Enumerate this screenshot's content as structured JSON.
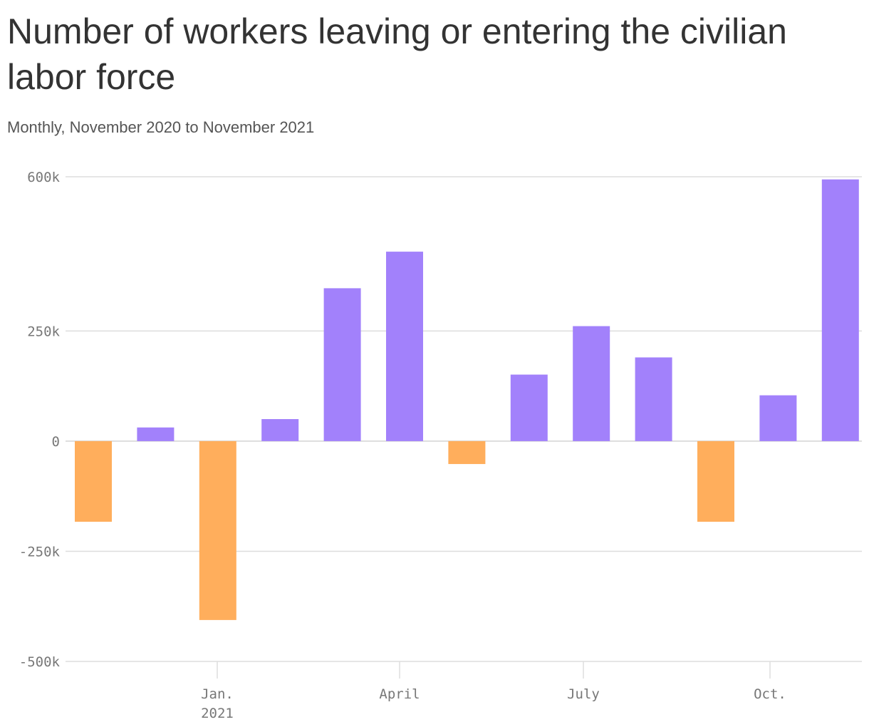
{
  "chart_data": {
    "type": "bar",
    "title": "Number of workers leaving or entering the civilian labor force",
    "subtitle": "Monthly, November 2020 to November 2021",
    "categories": [
      "Nov. 2020",
      "Dec. 2020",
      "Jan. 2021",
      "Feb. 2021",
      "Mar. 2021",
      "Apr. 2021",
      "May 2021",
      "Jun. 2021",
      "Jul. 2021",
      "Aug. 2021",
      "Sep. 2021",
      "Oct. 2021",
      "Nov. 2021"
    ],
    "values": [
      -183000,
      31000,
      -406000,
      50000,
      347000,
      430000,
      -52000,
      151000,
      261000,
      190000,
      -183000,
      104000,
      594000
    ],
    "ylim": [
      -500000,
      600000
    ],
    "yticks": [
      {
        "value": 600000,
        "label": "600k"
      },
      {
        "value": 250000,
        "label": "250k"
      },
      {
        "value": 0,
        "label": "0"
      },
      {
        "value": -250000,
        "label": "-250k"
      },
      {
        "value": -500000,
        "label": "-500k"
      }
    ],
    "xticks": [
      {
        "index": 2,
        "label": "Jan.",
        "sublabel": "2021"
      },
      {
        "index": 5,
        "label": "April",
        "sublabel": ""
      },
      {
        "index": 8,
        "label": "July",
        "sublabel": ""
      },
      {
        "index": 11,
        "label": "Oct.",
        "sublabel": ""
      }
    ],
    "colors": {
      "positive": "#a281fb",
      "negative": "#ffae5c"
    },
    "xlabel": "",
    "ylabel": "",
    "grid": true
  }
}
